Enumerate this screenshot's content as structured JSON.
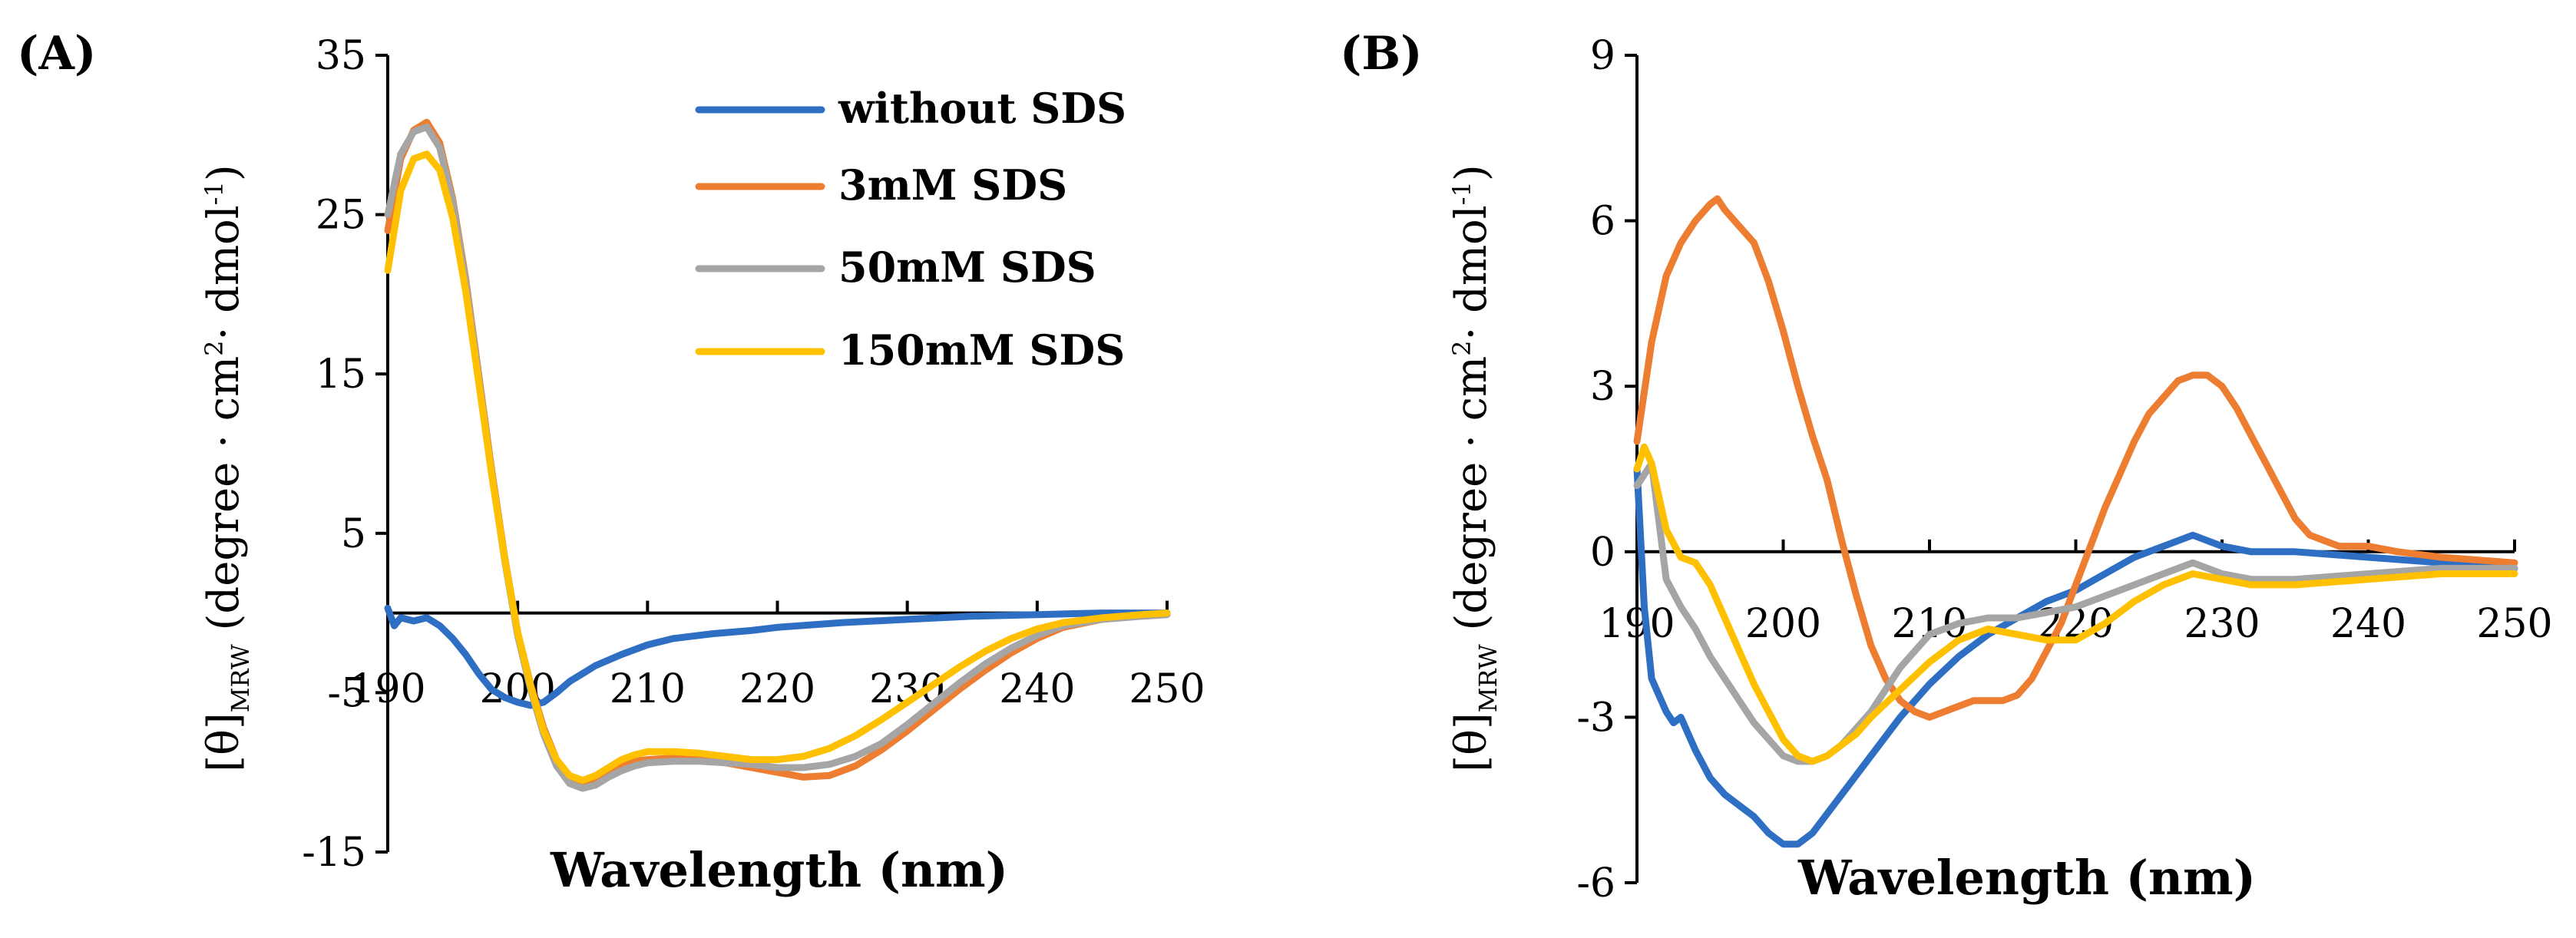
{
  "colors": {
    "without_sds": "#2E6FC4",
    "sds_3mM": "#ED7D31",
    "sds_50mM": "#A5A5A5",
    "sds_150mM": "#FFC000"
  },
  "chart_data": [
    {
      "panel_label": "(A)",
      "type": "line",
      "xlabel": "Wavelength (nm)",
      "ylabel_prefix": "[θ]",
      "ylabel_sub": "MRW",
      "ylabel_main": " (degree · cm",
      "ylabel_sup1": "2",
      "ylabel_mid": "· dmol",
      "ylabel_sup2": "-1",
      "ylabel_end": ")",
      "xlim": [
        190,
        250
      ],
      "ylim": [
        -15,
        35
      ],
      "xticks": [
        "190",
        "200",
        "210",
        "220",
        "230",
        "240",
        "250"
      ],
      "yticks": [
        "35",
        "25",
        "15",
        "5",
        "-5",
        "-15"
      ],
      "legend": [
        "without SDS",
        "3mM SDS",
        "50mM SDS",
        "150mM SDS"
      ],
      "series": [
        {
          "name": "without SDS",
          "color_key": "without_sds",
          "x": [
            190,
            190.5,
            191,
            192,
            193,
            194,
            195,
            196,
            197,
            198,
            199,
            200,
            201,
            202,
            203,
            204,
            205,
            206,
            208,
            210,
            212,
            215,
            218,
            220,
            225,
            230,
            235,
            240,
            245,
            250
          ],
          "y": [
            0.3,
            -0.8,
            -0.3,
            -0.5,
            -0.3,
            -0.8,
            -1.6,
            -2.6,
            -3.8,
            -4.8,
            -5.3,
            -5.6,
            -5.8,
            -5.6,
            -5.0,
            -4.3,
            -3.8,
            -3.3,
            -2.6,
            -2.0,
            -1.6,
            -1.3,
            -1.1,
            -0.9,
            -0.6,
            -0.4,
            -0.2,
            -0.1,
            0,
            0
          ]
        },
        {
          "name": "3mM SDS",
          "color_key": "sds_3mM",
          "x": [
            190,
            191,
            192,
            193,
            194,
            195,
            196,
            197,
            198,
            199,
            200,
            201,
            202,
            203,
            204,
            205,
            206,
            207,
            208,
            209,
            210,
            212,
            214,
            216,
            218,
            220,
            222,
            224,
            226,
            228,
            230,
            232,
            234,
            236,
            238,
            240,
            242,
            245,
            248,
            250
          ],
          "y": [
            24,
            28.5,
            30.3,
            30.8,
            29.5,
            26,
            21,
            15,
            9,
            3.5,
            -1.2,
            -4.5,
            -7.2,
            -9.2,
            -10.3,
            -10.6,
            -10.4,
            -10.0,
            -9.6,
            -9.3,
            -9.2,
            -9.1,
            -9.2,
            -9.4,
            -9.7,
            -10.0,
            -10.3,
            -10.2,
            -9.6,
            -8.6,
            -7.4,
            -6.1,
            -4.8,
            -3.6,
            -2.5,
            -1.6,
            -0.9,
            -0.4,
            -0.2,
            -0.1
          ]
        },
        {
          "name": "50mM SDS",
          "color_key": "sds_50mM",
          "x": [
            190,
            191,
            192,
            193,
            194,
            195,
            196,
            197,
            198,
            199,
            200,
            201,
            202,
            203,
            204,
            205,
            206,
            207,
            208,
            209,
            210,
            212,
            214,
            216,
            218,
            220,
            222,
            224,
            226,
            228,
            230,
            232,
            234,
            236,
            238,
            240,
            242,
            245,
            248,
            250
          ],
          "y": [
            25,
            28.8,
            30.2,
            30.5,
            29.2,
            25.8,
            20.8,
            14.8,
            8.8,
            3.3,
            -1.4,
            -4.8,
            -7.6,
            -9.6,
            -10.7,
            -11.0,
            -10.8,
            -10.3,
            -9.9,
            -9.6,
            -9.4,
            -9.3,
            -9.3,
            -9.4,
            -9.5,
            -9.7,
            -9.7,
            -9.5,
            -9.0,
            -8.2,
            -7.0,
            -5.7,
            -4.4,
            -3.2,
            -2.2,
            -1.4,
            -0.8,
            -0.4,
            -0.2,
            -0.1
          ]
        },
        {
          "name": "150mM SDS",
          "color_key": "sds_150mM",
          "x": [
            190,
            191,
            192,
            193,
            194,
            195,
            196,
            197,
            198,
            199,
            200,
            201,
            202,
            203,
            204,
            205,
            206,
            207,
            208,
            209,
            210,
            212,
            214,
            216,
            218,
            220,
            222,
            224,
            226,
            228,
            230,
            232,
            234,
            236,
            238,
            240,
            242,
            245,
            248,
            250
          ],
          "y": [
            21.5,
            26.5,
            28.5,
            28.8,
            27.8,
            24.8,
            20.2,
            14.5,
            8.7,
            3.4,
            -1.2,
            -4.6,
            -7.4,
            -9.2,
            -10.2,
            -10.5,
            -10.2,
            -9.7,
            -9.2,
            -8.9,
            -8.7,
            -8.7,
            -8.8,
            -9.0,
            -9.2,
            -9.2,
            -9.0,
            -8.5,
            -7.7,
            -6.7,
            -5.6,
            -4.5,
            -3.4,
            -2.4,
            -1.6,
            -1.0,
            -0.6,
            -0.3,
            -0.1,
            0
          ]
        }
      ]
    },
    {
      "panel_label": "(B)",
      "type": "line",
      "xlabel": "Wavelength (nm)",
      "ylabel_prefix": "[θ]",
      "ylabel_sub": "MRW",
      "ylabel_main": " (degree · cm",
      "ylabel_sup1": "2",
      "ylabel_mid": "· dmol",
      "ylabel_sup2": "-1",
      "ylabel_end": ")",
      "xlim": [
        190,
        250
      ],
      "ylim": [
        -6,
        9
      ],
      "xticks": [
        "190",
        "200",
        "210",
        "220",
        "230",
        "240",
        "250"
      ],
      "yticks": [
        "9",
        "6",
        "3",
        "0",
        "-3",
        "-6"
      ],
      "series": [
        {
          "name": "without SDS",
          "color_key": "without_sds",
          "x": [
            190,
            190.5,
            191,
            192,
            192.5,
            193,
            194,
            195,
            196,
            197,
            198,
            199,
            200,
            201,
            202,
            204,
            206,
            208,
            210,
            212,
            214,
            216,
            218,
            220,
            222,
            224,
            226,
            228,
            230,
            232,
            235,
            240,
            245,
            250
          ],
          "y": [
            1.5,
            -1.0,
            -2.3,
            -2.9,
            -3.1,
            -3.0,
            -3.6,
            -4.1,
            -4.4,
            -4.6,
            -4.8,
            -5.1,
            -5.3,
            -5.3,
            -5.1,
            -4.4,
            -3.7,
            -3.0,
            -2.4,
            -1.9,
            -1.5,
            -1.2,
            -0.9,
            -0.7,
            -0.4,
            -0.1,
            0.1,
            0.3,
            0.1,
            0,
            0,
            -0.1,
            -0.2,
            -0.3
          ]
        },
        {
          "name": "3mM SDS",
          "color_key": "sds_3mM",
          "x": [
            190,
            191,
            192,
            193,
            194,
            195,
            195.5,
            196,
            197,
            198,
            199,
            200,
            201,
            202,
            203,
            204,
            205,
            206,
            207,
            208,
            209,
            210,
            211,
            212,
            213,
            214,
            215,
            216,
            217,
            218,
            219,
            220,
            221,
            222,
            223,
            224,
            225,
            226,
            227,
            228,
            229,
            230,
            231,
            232,
            233,
            234,
            235,
            236,
            238,
            240,
            242,
            245,
            250
          ],
          "y": [
            2.0,
            3.8,
            5.0,
            5.6,
            6.0,
            6.3,
            6.4,
            6.2,
            5.9,
            5.6,
            4.9,
            4.0,
            3.0,
            2.1,
            1.3,
            0.2,
            -0.8,
            -1.7,
            -2.3,
            -2.7,
            -2.9,
            -3.0,
            -2.9,
            -2.8,
            -2.7,
            -2.7,
            -2.7,
            -2.6,
            -2.3,
            -1.8,
            -1.3,
            -0.6,
            0.1,
            0.8,
            1.4,
            2.0,
            2.5,
            2.8,
            3.1,
            3.2,
            3.2,
            3.0,
            2.6,
            2.1,
            1.6,
            1.1,
            0.6,
            0.3,
            0.1,
            0.1,
            0,
            -0.1,
            -0.2
          ]
        },
        {
          "name": "50mM SDS",
          "color_key": "sds_50mM",
          "x": [
            190,
            191,
            192,
            193,
            194,
            195,
            196,
            197,
            198,
            199,
            200,
            201,
            202,
            203,
            204,
            205,
            206,
            207,
            208,
            209,
            210,
            212,
            214,
            216,
            218,
            220,
            222,
            224,
            226,
            228,
            230,
            232,
            235,
            240,
            245,
            250
          ],
          "y": [
            1.2,
            1.6,
            -0.5,
            -1.0,
            -1.4,
            -1.9,
            -2.3,
            -2.7,
            -3.1,
            -3.4,
            -3.7,
            -3.8,
            -3.8,
            -3.7,
            -3.5,
            -3.2,
            -2.9,
            -2.5,
            -2.1,
            -1.8,
            -1.5,
            -1.3,
            -1.2,
            -1.2,
            -1.1,
            -1.0,
            -0.8,
            -0.6,
            -0.4,
            -0.2,
            -0.4,
            -0.5,
            -0.5,
            -0.4,
            -0.3,
            -0.3
          ]
        },
        {
          "name": "150mM SDS",
          "color_key": "sds_150mM",
          "x": [
            190,
            190.5,
            191,
            192,
            193,
            194,
            195,
            196,
            197,
            198,
            199,
            200,
            201,
            202,
            203,
            204,
            205,
            206,
            208,
            210,
            212,
            214,
            216,
            218,
            220,
            222,
            224,
            226,
            228,
            230,
            232,
            235,
            240,
            245,
            250
          ],
          "y": [
            1.5,
            1.9,
            1.6,
            0.4,
            -0.1,
            -0.2,
            -0.6,
            -1.2,
            -1.8,
            -2.4,
            -2.9,
            -3.4,
            -3.7,
            -3.8,
            -3.7,
            -3.5,
            -3.3,
            -3.0,
            -2.5,
            -2.0,
            -1.6,
            -1.4,
            -1.5,
            -1.6,
            -1.6,
            -1.3,
            -0.9,
            -0.6,
            -0.4,
            -0.5,
            -0.6,
            -0.6,
            -0.5,
            -0.4,
            -0.4
          ]
        }
      ]
    }
  ]
}
